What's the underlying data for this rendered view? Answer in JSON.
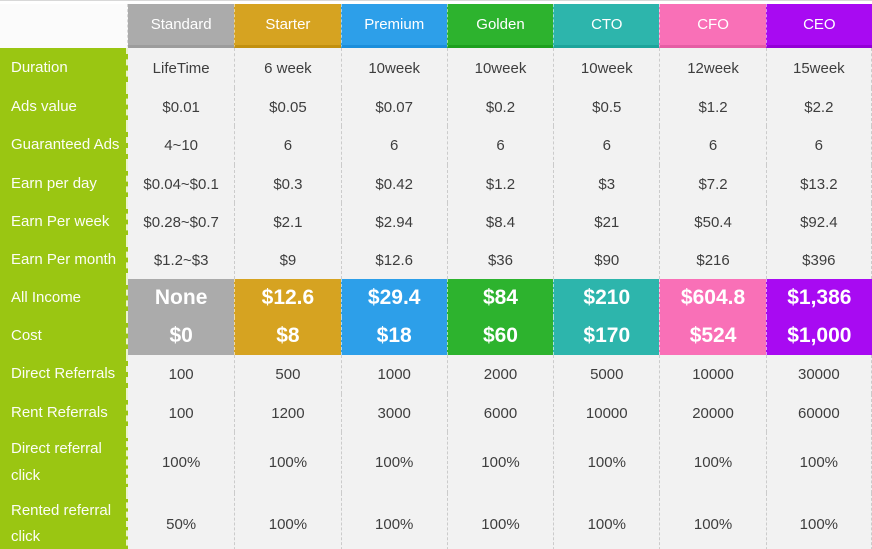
{
  "colors": {
    "label_column_green": "#9ac612",
    "body_cell_bg": "#f2f2f2",
    "page_top_border": "#d8d8d8"
  },
  "table": {
    "columns": [
      {
        "label": "Standard",
        "color": "#ababab",
        "dark": "#9c9c9c"
      },
      {
        "label": "Starter",
        "color": "#d6a321",
        "dark": "#c2900f"
      },
      {
        "label": "Premium",
        "color": "#2d9fe9",
        "dark": "#1b8edb"
      },
      {
        "label": "Golden",
        "color": "#2db32e",
        "dark": "#1da01e"
      },
      {
        "label": "CTO",
        "color": "#2db5ac",
        "dark": "#1da49b"
      },
      {
        "label": "CFO",
        "color": "#f970b7",
        "dark": "#e55da4"
      },
      {
        "label": "CEO",
        "color": "#a80af2",
        "dark": "#9300d6"
      }
    ],
    "rows": [
      {
        "label": "Duration",
        "highlight": false,
        "values": [
          "LifeTime",
          "6 week",
          "10week",
          "10week",
          "10week",
          "12week",
          "15week"
        ]
      },
      {
        "label": "Ads value",
        "highlight": false,
        "values": [
          "$0.01",
          "$0.05",
          "$0.07",
          "$0.2",
          "$0.5",
          "$1.2",
          "$2.2"
        ]
      },
      {
        "label": "Guaranteed Ads",
        "highlight": false,
        "values": [
          "4~10",
          "6",
          "6",
          "6",
          "6",
          "6",
          "6"
        ]
      },
      {
        "label": "Earn per day",
        "highlight": false,
        "values": [
          "$0.04~$0.1",
          "$0.3",
          "$0.42",
          "$1.2",
          "$3",
          "$7.2",
          "$13.2"
        ]
      },
      {
        "label": "Earn Per week",
        "highlight": false,
        "values": [
          "$0.28~$0.7",
          "$2.1",
          "$2.94",
          "$8.4",
          "$21",
          "$50.4",
          "$92.4"
        ]
      },
      {
        "label": "Earn Per month",
        "highlight": false,
        "values": [
          "$1.2~$3",
          "$9",
          "$12.6",
          "$36",
          "$90",
          "$216",
          "$396"
        ]
      },
      {
        "label": "All Income",
        "highlight": true,
        "values": [
          "None",
          "$12.6",
          "$29.4",
          "$84",
          "$210",
          "$604.8",
          "$1,386"
        ]
      },
      {
        "label": "Cost",
        "highlight": true,
        "values": [
          "$0",
          "$8",
          "$18",
          "$60",
          "$170",
          "$524",
          "$1,000"
        ]
      },
      {
        "label": "Direct Referrals",
        "highlight": false,
        "values": [
          "100",
          "500",
          "1000",
          "2000",
          "5000",
          "10000",
          "30000"
        ]
      },
      {
        "label": "Rent Referrals",
        "highlight": false,
        "values": [
          "100",
          "1200",
          "3000",
          "6000",
          "10000",
          "20000",
          "60000"
        ]
      },
      {
        "label": "Direct referral click",
        "highlight": false,
        "values": [
          "100%",
          "100%",
          "100%",
          "100%",
          "100%",
          "100%",
          "100%"
        ]
      },
      {
        "label": "Rented referral click",
        "highlight": false,
        "values": [
          "50%",
          "100%",
          "100%",
          "100%",
          "100%",
          "100%",
          "100%"
        ]
      }
    ]
  }
}
